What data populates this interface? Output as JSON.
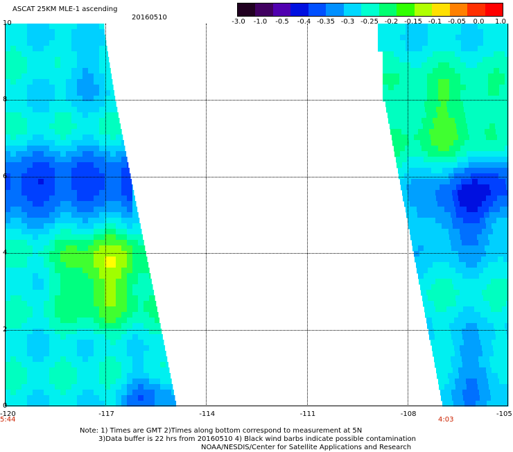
{
  "header": {
    "title": "ASCAT 25KM MLE-1 ascending",
    "date": "20160510"
  },
  "colorbar": {
    "labels": [
      "-3.0",
      "-1.0",
      "-0.5",
      "-0.4",
      "-0.35",
      "-0.3",
      "-0.25",
      "-0.2",
      "-0.15",
      "-0.1",
      "-0.05",
      "0.0",
      "1.0"
    ],
    "colors": [
      "#200020",
      "#400060",
      "#5000b0",
      "#0010e0",
      "#0050ff",
      "#0090ff",
      "#00d8ff",
      "#00ffd0",
      "#00ff70",
      "#30ff00",
      "#b0ff00",
      "#ffe000",
      "#ff8000",
      "#ff3000",
      "#ff0000"
    ]
  },
  "axes": {
    "x_ticks": [
      "-120",
      "-117",
      "-114",
      "-111",
      "-108",
      "-105"
    ],
    "y_ticks": [
      "10",
      "8",
      "6",
      "4",
      "2",
      "0"
    ]
  },
  "times": {
    "left": "5:44",
    "right": "4:03"
  },
  "notes": {
    "line1": "Note: 1) Times are GMT 2)Times along bottom correspond to measurement at 5N",
    "line2": "3)Data buffer is 22 hrs from 20160510 4) Black wind barbs indicate possible contamination",
    "line3": "NOAA/NESDIS/Center for Satellite Applications and Research"
  }
}
